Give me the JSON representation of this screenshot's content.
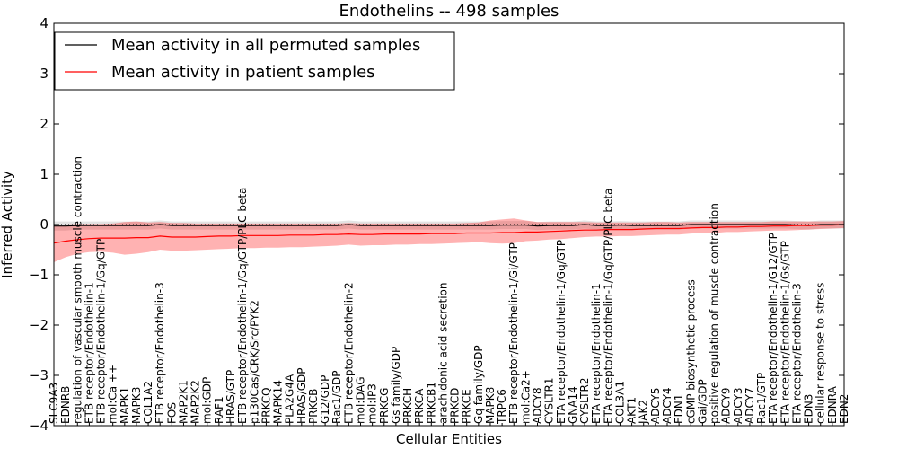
{
  "chart_data": {
    "type": "line",
    "title": "Endothelins -- 498 samples",
    "xlabel": "Cellular Entities",
    "ylabel": "Inferred Activity",
    "ylim": [
      -4,
      4
    ],
    "yticks": [
      -4,
      -3,
      -2,
      -1,
      0,
      1,
      2,
      3,
      4
    ],
    "legend_position": "top-left",
    "grid": false,
    "categories": [
      "SLC9A3",
      "EDNRB",
      "regulation of vascular smooth muscle contraction",
      "ETB receptor/Endothelin-1",
      "ETB receptor/Endothelin-1/Gq/GTP",
      "mol:Ca ++",
      "MAPK1",
      "MAPK3",
      "COL1A2",
      "ETB receptor/Endothelin-3",
      "FOS",
      "MAP2K1",
      "MAP2K2",
      "mol:GDP",
      "RAF1",
      "HRAS/GTP",
      "ETB receptor/Endothelin-1/Gq/GTP/PLC beta",
      "p130Cas/CRK/Src/PYK2",
      "PRKCQ",
      "MAPK14",
      "PLA2G4A",
      "HRAS/GDP",
      "PRKCB",
      "G12/GDP",
      "Rac1/GDP",
      "ETB receptor/Endothelin-2",
      "mol:DAG",
      "mol:IP3",
      "PRKCG",
      "Gs family/GDP",
      "PRKCH",
      "PRKCA",
      "PRKCB1",
      "arachidonic acid secretion",
      "PRKCD",
      "PRKCE",
      "Gq family/GDP",
      "MAPK8",
      "TRPC6",
      "ETB receptor/Endothelin-1/Gi/GTP",
      "mol:Ca2+",
      "ADCY8",
      "CYSLTR1",
      "ETA receptor/Endothelin-1/Gq/GTP",
      "GNA14",
      "CYSLTR2",
      "ETA receptor/Endothelin-1",
      "ETA receptor/Endothelin-1/Gq/GTP/PLC beta",
      "COL3A1",
      "AKT1",
      "JAK2",
      "ADCY5",
      "ADCY4",
      "EDN1",
      "cGMP biosynthetic process",
      "Gai/GDP",
      "positive regulation of muscle contraction",
      "ADCY9",
      "ADCY3",
      "ADCY7",
      "Rac1/GTP",
      "ETA receptor/Endothelin-1/G12/GTP",
      "ETA receptor/Endothelin-1/Gs/GTP",
      "ETA receptor/Endothelin-3",
      "EDN3",
      "cellular response to stress",
      "EDNRA",
      "EDN2"
    ],
    "series": [
      {
        "name": "Mean activity in all permuted samples",
        "color": "#000000",
        "values": [
          -0.03,
          -0.03,
          -0.02,
          -0.02,
          -0.02,
          -0.02,
          -0.02,
          -0.02,
          -0.02,
          0.0,
          -0.02,
          -0.02,
          -0.02,
          -0.02,
          -0.02,
          -0.02,
          -0.02,
          -0.02,
          -0.02,
          -0.02,
          -0.02,
          -0.02,
          -0.02,
          -0.02,
          -0.02,
          0.0,
          -0.02,
          -0.02,
          -0.02,
          -0.02,
          -0.02,
          -0.02,
          -0.02,
          -0.02,
          -0.02,
          -0.02,
          -0.02,
          -0.02,
          -0.01,
          -0.01,
          -0.01,
          -0.03,
          -0.02,
          -0.02,
          -0.02,
          0.0,
          -0.02,
          -0.02,
          -0.01,
          -0.02,
          -0.02,
          -0.02,
          -0.02,
          -0.02,
          0.0,
          0.0,
          0.0,
          0.0,
          0.0,
          0.0,
          0.0,
          0.0,
          0.0,
          -0.01,
          -0.02,
          0.0,
          0.0,
          0.0
        ],
        "lower": [
          -0.12,
          -0.12,
          -0.1,
          -0.1,
          -0.1,
          -0.1,
          -0.1,
          -0.1,
          -0.1,
          -0.08,
          -0.1,
          -0.1,
          -0.1,
          -0.1,
          -0.1,
          -0.1,
          -0.1,
          -0.1,
          -0.1,
          -0.1,
          -0.1,
          -0.1,
          -0.1,
          -0.1,
          -0.1,
          -0.08,
          -0.1,
          -0.1,
          -0.1,
          -0.1,
          -0.1,
          -0.1,
          -0.1,
          -0.1,
          -0.1,
          -0.1,
          -0.1,
          -0.1,
          -0.09,
          -0.09,
          -0.09,
          -0.11,
          -0.1,
          -0.1,
          -0.1,
          -0.08,
          -0.1,
          -0.1,
          -0.09,
          -0.1,
          -0.1,
          -0.1,
          -0.1,
          -0.1,
          -0.08,
          -0.08,
          -0.08,
          -0.08,
          -0.08,
          -0.08,
          -0.08,
          -0.08,
          -0.08,
          -0.09,
          -0.1,
          -0.08,
          -0.08,
          -0.08
        ],
        "upper": [
          0.06,
          0.06,
          0.06,
          0.06,
          0.06,
          0.06,
          0.06,
          0.06,
          0.06,
          0.08,
          0.06,
          0.06,
          0.06,
          0.06,
          0.06,
          0.06,
          0.06,
          0.06,
          0.06,
          0.06,
          0.06,
          0.06,
          0.06,
          0.06,
          0.06,
          0.08,
          0.06,
          0.06,
          0.06,
          0.06,
          0.06,
          0.06,
          0.06,
          0.06,
          0.06,
          0.06,
          0.06,
          0.06,
          0.07,
          0.07,
          0.07,
          0.05,
          0.06,
          0.06,
          0.06,
          0.08,
          0.06,
          0.06,
          0.07,
          0.06,
          0.06,
          0.06,
          0.06,
          0.06,
          0.08,
          0.08,
          0.08,
          0.08,
          0.08,
          0.08,
          0.08,
          0.08,
          0.08,
          0.07,
          0.06,
          0.08,
          0.08,
          0.08
        ]
      },
      {
        "name": "Mean activity in patient samples",
        "color": "#ff0000",
        "values": [
          -0.37,
          -0.33,
          -0.3,
          -0.28,
          -0.27,
          -0.27,
          -0.27,
          -0.26,
          -0.26,
          -0.23,
          -0.25,
          -0.25,
          -0.25,
          -0.24,
          -0.23,
          -0.23,
          -0.22,
          -0.22,
          -0.22,
          -0.22,
          -0.21,
          -0.21,
          -0.21,
          -0.2,
          -0.2,
          -0.19,
          -0.2,
          -0.2,
          -0.19,
          -0.19,
          -0.19,
          -0.19,
          -0.18,
          -0.18,
          -0.18,
          -0.17,
          -0.17,
          -0.17,
          -0.16,
          -0.16,
          -0.15,
          -0.15,
          -0.14,
          -0.13,
          -0.12,
          -0.11,
          -0.11,
          -0.1,
          -0.1,
          -0.1,
          -0.09,
          -0.08,
          -0.08,
          -0.08,
          -0.07,
          -0.06,
          -0.06,
          -0.05,
          -0.05,
          -0.04,
          -0.04,
          -0.03,
          -0.03,
          -0.02,
          -0.02,
          -0.01,
          -0.01,
          0.0
        ],
        "lower": [
          -0.75,
          -0.65,
          -0.58,
          -0.55,
          -0.54,
          -0.56,
          -0.6,
          -0.58,
          -0.55,
          -0.5,
          -0.52,
          -0.52,
          -0.51,
          -0.5,
          -0.49,
          -0.48,
          -0.47,
          -0.47,
          -0.46,
          -0.46,
          -0.45,
          -0.45,
          -0.44,
          -0.43,
          -0.42,
          -0.4,
          -0.42,
          -0.41,
          -0.41,
          -0.4,
          -0.4,
          -0.39,
          -0.39,
          -0.38,
          -0.37,
          -0.36,
          -0.35,
          -0.37,
          -0.38,
          -0.37,
          -0.33,
          -0.32,
          -0.3,
          -0.29,
          -0.27,
          -0.25,
          -0.24,
          -0.24,
          -0.23,
          -0.23,
          -0.22,
          -0.21,
          -0.2,
          -0.2,
          -0.18,
          -0.17,
          -0.17,
          -0.15,
          -0.15,
          -0.14,
          -0.13,
          -0.12,
          -0.12,
          -0.11,
          -0.1,
          -0.09,
          -0.08,
          -0.07
        ],
        "upper": [
          0.0,
          0.0,
          0.01,
          0.01,
          0.01,
          0.02,
          0.05,
          0.06,
          0.04,
          0.05,
          0.03,
          0.03,
          0.02,
          0.02,
          0.02,
          0.02,
          0.02,
          0.02,
          0.02,
          0.02,
          0.02,
          0.02,
          0.02,
          0.02,
          0.02,
          0.03,
          0.02,
          0.02,
          0.02,
          0.02,
          0.02,
          0.02,
          0.02,
          0.02,
          0.02,
          0.03,
          0.04,
          0.08,
          0.1,
          0.12,
          0.08,
          0.05,
          0.05,
          0.05,
          0.05,
          0.05,
          0.04,
          0.04,
          0.04,
          0.04,
          0.04,
          0.05,
          0.05,
          0.04,
          0.05,
          0.05,
          0.05,
          0.05,
          0.05,
          0.05,
          0.05,
          0.06,
          0.06,
          0.06,
          0.06,
          0.06,
          0.06,
          0.07
        ]
      }
    ]
  }
}
